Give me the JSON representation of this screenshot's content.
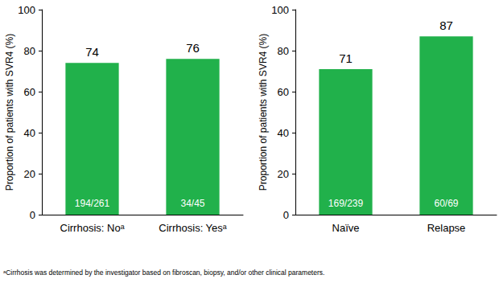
{
  "chart_data": [
    {
      "type": "bar",
      "categories": [
        "Cirrhosis: Noᵃ",
        "Cirrhosis: Yesᵃ"
      ],
      "values": [
        74,
        76
      ],
      "annotations": [
        "194/261",
        "34/45"
      ],
      "ylabel": "Proportion of patients with SVR4 (%)",
      "ylim": [
        0,
        100
      ],
      "yticks": [
        0,
        20,
        40,
        60,
        80,
        100
      ],
      "color": "#21b14b",
      "grid": false,
      "data_labels": true
    },
    {
      "type": "bar",
      "categories": [
        "Naïve",
        "Relapse"
      ],
      "values": [
        71,
        87
      ],
      "annotations": [
        "169/239",
        "60/69"
      ],
      "ylabel": "Proportion of patients with SVR4 (%)",
      "ylim": [
        0,
        100
      ],
      "yticks": [
        0,
        20,
        40,
        60,
        80,
        100
      ],
      "color": "#21b14b",
      "grid": false,
      "data_labels": true
    }
  ],
  "footnote": "ᵃCirrhosis was determined by the investigator based on fibroscan, biopsy, and/or other clinical parameters."
}
